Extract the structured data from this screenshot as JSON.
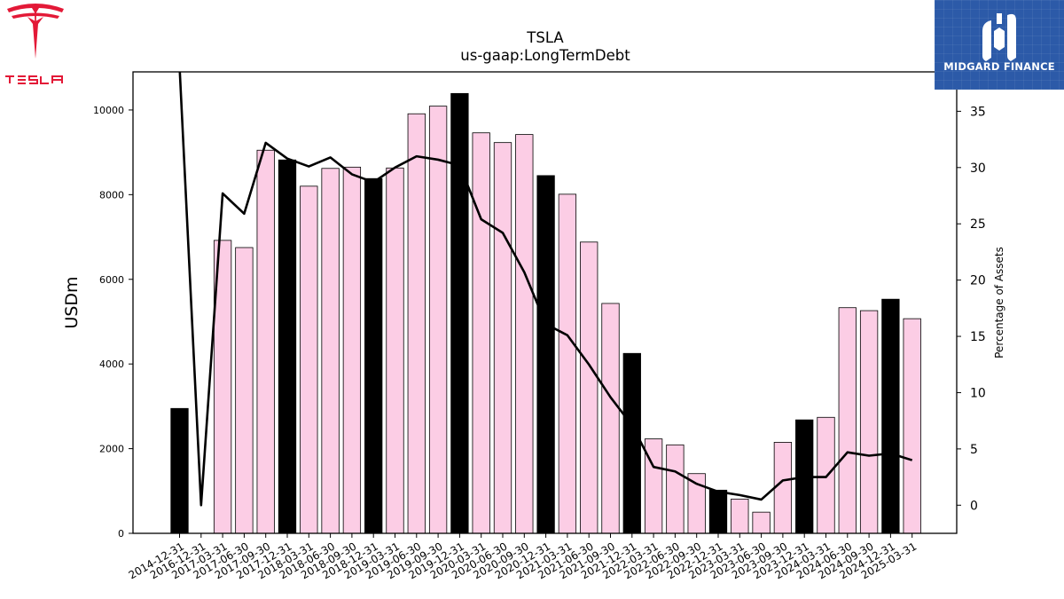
{
  "brand": {
    "tesla_wordmark": "TESLA",
    "badge_name": "MIDGARD FINANCE",
    "tesla_color": "#e31937",
    "badge_color": "#2c5aa8"
  },
  "chart_data": {
    "type": "bar",
    "title": "TSLA",
    "subtitle": "us-gaap:LongTermDebt",
    "ylabel": "USDm",
    "y2label": "Percentage of Assets",
    "ylim": [
      0,
      10900
    ],
    "y2lim": [
      -2.5,
      38.5
    ],
    "yticks": [
      0,
      2000,
      4000,
      6000,
      8000,
      10000
    ],
    "y2ticks": [
      0,
      5,
      10,
      15,
      20,
      25,
      30,
      35
    ],
    "categories": [
      "2014-12-31",
      "2016-12-31",
      "2017-03-31",
      "2017-06-30",
      "2017-09-30",
      "2017-12-31",
      "2018-03-31",
      "2018-06-30",
      "2018-09-30",
      "2018-12-31",
      "2019-03-31",
      "2019-06-30",
      "2019-09-30",
      "2019-12-31",
      "2020-03-31",
      "2020-06-30",
      "2020-09-30",
      "2020-12-31",
      "2021-03-31",
      "2021-06-30",
      "2021-09-30",
      "2021-12-31",
      "2022-03-31",
      "2022-06-30",
      "2022-09-30",
      "2022-12-31",
      "2023-03-31",
      "2023-06-30",
      "2023-09-30",
      "2023-12-31",
      "2024-03-31",
      "2024-06-30",
      "2024-09-30",
      "2024-12-31",
      "2025-03-31"
    ],
    "series": [
      {
        "type": "bar",
        "axis": "left",
        "values": [
          2950,
          0,
          6920,
          6750,
          9050,
          8820,
          8200,
          8620,
          8650,
          8380,
          8630,
          9910,
          10090,
          10390,
          9460,
          9230,
          9420,
          8450,
          8010,
          6880,
          5430,
          4250,
          2230,
          2090,
          1410,
          1020,
          810,
          500,
          2150,
          2680,
          2740,
          5330,
          5260,
          5530,
          5070
        ],
        "annual_flags": [
          true,
          false,
          false,
          false,
          false,
          true,
          false,
          false,
          false,
          true,
          false,
          false,
          false,
          true,
          false,
          false,
          false,
          true,
          false,
          false,
          false,
          true,
          false,
          false,
          false,
          true,
          false,
          false,
          false,
          true,
          false,
          false,
          false,
          true,
          false
        ],
        "annual_color": "#000000",
        "quarter_color": "#fccde5"
      },
      {
        "type": "line",
        "axis": "right",
        "color": "#000000",
        "values": [
          39,
          0,
          27.7,
          25.9,
          32.2,
          30.8,
          30.1,
          30.9,
          29.4,
          28.7,
          30.0,
          31.0,
          30.7,
          30.2,
          25.4,
          24.2,
          20.7,
          16.1,
          15.1,
          12.5,
          9.6,
          7.1,
          3.4,
          3.0,
          1.9,
          1.2,
          0.9,
          0.5,
          2.2,
          2.5,
          2.5,
          4.7,
          4.4,
          4.6,
          4.0
        ]
      }
    ]
  }
}
